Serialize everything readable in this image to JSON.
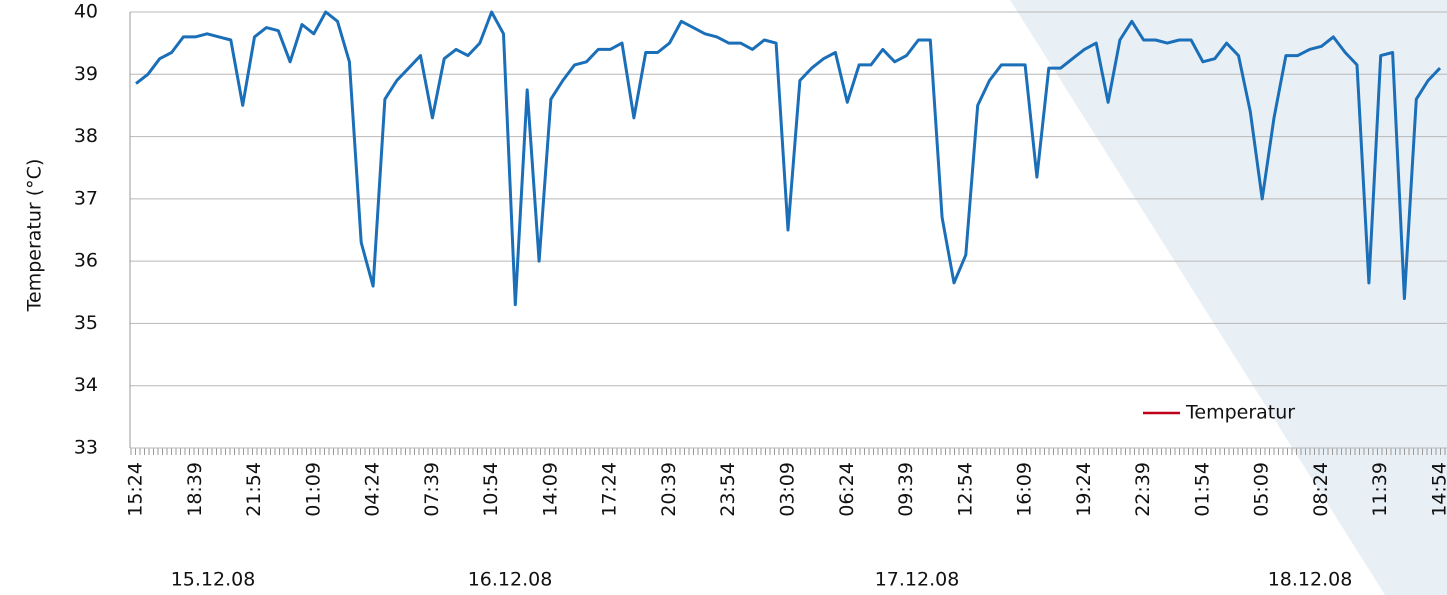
{
  "chart_data": {
    "type": "line",
    "y_label": "Temperatur (°C)",
    "categories": [
      "15:24",
      null,
      null,
      null,
      null,
      "18:39",
      null,
      null,
      null,
      null,
      "21:54",
      null,
      null,
      null,
      null,
      "01:09",
      null,
      null,
      null,
      null,
      "04:24",
      null,
      null,
      null,
      null,
      "07:39",
      null,
      null,
      null,
      null,
      "10:54",
      null,
      null,
      null,
      null,
      "14:09",
      null,
      null,
      null,
      null,
      "17:24",
      null,
      null,
      null,
      null,
      "20:39",
      null,
      null,
      null,
      null,
      "23:54",
      null,
      null,
      null,
      null,
      "03:09",
      null,
      null,
      null,
      null,
      "06:24",
      null,
      null,
      null,
      null,
      "09:39",
      null,
      null,
      null,
      null,
      "12:54",
      null,
      null,
      null,
      null,
      "16:09",
      null,
      null,
      null,
      null,
      "19:24",
      null,
      null,
      null,
      null,
      "22:39",
      null,
      null,
      null,
      null,
      "01:54",
      null,
      null,
      null,
      null,
      "05:09",
      null,
      null,
      null,
      null,
      "08:24",
      null,
      null,
      null,
      null,
      "11:39",
      null,
      null,
      null,
      null,
      "14:54"
    ],
    "date_labels": [
      "15.12.08",
      "16.12.08",
      "17.12.08",
      "18.12.08"
    ],
    "series": [
      {
        "name": "Temperatur",
        "color": "#1a6fb8",
        "legend_color": "#c00018",
        "values": [
          38.85,
          39.0,
          39.25,
          39.35,
          39.6,
          39.6,
          39.65,
          39.6,
          39.55,
          38.5,
          39.6,
          39.75,
          39.7,
          39.2,
          39.8,
          39.65,
          40.0,
          39.85,
          39.2,
          36.3,
          35.6,
          38.6,
          38.9,
          39.1,
          39.3,
          38.3,
          39.25,
          39.4,
          39.3,
          39.5,
          40.0,
          39.65,
          35.3,
          38.75,
          36.0,
          38.6,
          38.9,
          39.15,
          39.2,
          39.4,
          39.4,
          39.5,
          38.3,
          39.35,
          39.35,
          39.5,
          39.85,
          39.75,
          39.65,
          39.6,
          39.5,
          39.5,
          39.4,
          39.55,
          39.5,
          36.5,
          38.9,
          39.1,
          39.25,
          39.35,
          38.55,
          39.15,
          39.15,
          39.4,
          39.2,
          39.3,
          39.55,
          39.55,
          36.7,
          35.65,
          36.1,
          38.5,
          38.9,
          39.15,
          39.15,
          39.15,
          37.35,
          39.1,
          39.1,
          39.25,
          39.4,
          39.5,
          38.55,
          39.55,
          39.85,
          39.55,
          39.55,
          39.5,
          39.55,
          39.55,
          39.2,
          39.25,
          39.5,
          39.3,
          38.4,
          37.0,
          38.3,
          39.3,
          39.3,
          39.4,
          39.45,
          39.6,
          39.35,
          39.15,
          35.65,
          39.3,
          39.35,
          35.4,
          38.6,
          38.9,
          39.1
        ]
      }
    ],
    "ylim": [
      33,
      40
    ],
    "yticks": [
      33,
      34,
      35,
      36,
      37,
      38,
      39,
      40
    ],
    "grid": true
  }
}
